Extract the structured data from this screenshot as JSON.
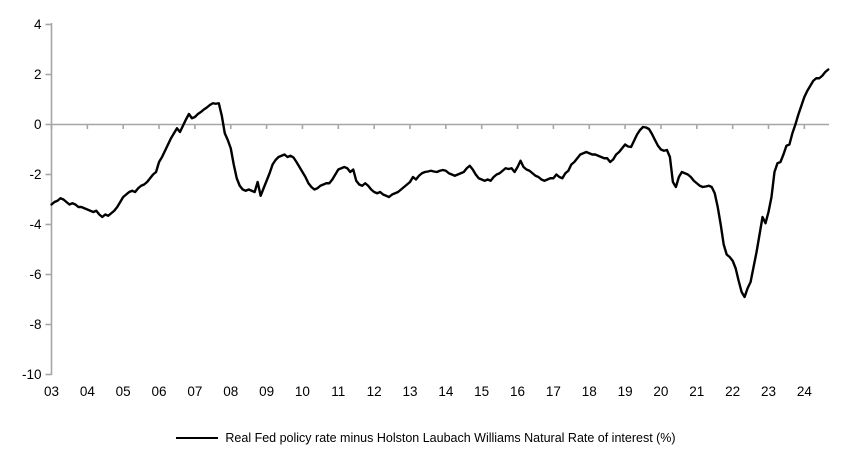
{
  "chart_data": {
    "type": "line",
    "title": "",
    "xlabel": "",
    "ylabel": "",
    "x_start": "2003-01",
    "x_frequency": "monthly",
    "x_tick_labels": [
      "03",
      "04",
      "05",
      "06",
      "07",
      "08",
      "09",
      "10",
      "11",
      "12",
      "13",
      "14",
      "15",
      "16",
      "17",
      "18",
      "19",
      "20",
      "21",
      "22",
      "23",
      "24"
    ],
    "y_ticks": [
      4,
      2,
      0,
      -2,
      -4,
      -6,
      -8,
      -10
    ],
    "ylim": [
      -10,
      4
    ],
    "grid": "zero-line-only",
    "legend_position": "bottom-center",
    "axis_color": "#a6a6a6",
    "text_color": "#000000",
    "series": [
      {
        "name": "Real Fed policy rate minus Holston Laubach Williams Natural Rate of interest (%)",
        "color": "#000000",
        "values": [
          -3.2,
          -3.1,
          -3.05,
          -2.95,
          -3.0,
          -3.1,
          -3.2,
          -3.15,
          -3.2,
          -3.3,
          -3.3,
          -3.35,
          -3.4,
          -3.45,
          -3.5,
          -3.45,
          -3.6,
          -3.7,
          -3.6,
          -3.65,
          -3.55,
          -3.45,
          -3.3,
          -3.1,
          -2.9,
          -2.8,
          -2.7,
          -2.65,
          -2.7,
          -2.55,
          -2.45,
          -2.4,
          -2.3,
          -2.15,
          -2.0,
          -1.9,
          -1.5,
          -1.3,
          -1.05,
          -0.8,
          -0.55,
          -0.35,
          -0.15,
          -0.3,
          -0.05,
          0.2,
          0.42,
          0.25,
          0.3,
          0.42,
          0.5,
          0.6,
          0.68,
          0.78,
          0.85,
          0.83,
          0.85,
          0.35,
          -0.35,
          -0.62,
          -0.95,
          -1.6,
          -2.15,
          -2.45,
          -2.6,
          -2.65,
          -2.6,
          -2.65,
          -2.7,
          -2.3,
          -2.85,
          -2.55,
          -2.25,
          -1.95,
          -1.6,
          -1.42,
          -1.3,
          -1.25,
          -1.2,
          -1.3,
          -1.25,
          -1.32,
          -1.5,
          -1.7,
          -1.9,
          -2.1,
          -2.35,
          -2.5,
          -2.6,
          -2.55,
          -2.45,
          -2.4,
          -2.35,
          -2.35,
          -2.2,
          -2.0,
          -1.8,
          -1.75,
          -1.7,
          -1.75,
          -1.9,
          -1.8,
          -2.25,
          -2.4,
          -2.45,
          -2.35,
          -2.45,
          -2.6,
          -2.7,
          -2.75,
          -2.7,
          -2.8,
          -2.85,
          -2.9,
          -2.8,
          -2.75,
          -2.7,
          -2.6,
          -2.5,
          -2.4,
          -2.3,
          -2.1,
          -2.2,
          -2.05,
          -1.95,
          -1.9,
          -1.88,
          -1.85,
          -1.88,
          -1.9,
          -1.85,
          -1.82,
          -1.85,
          -1.95,
          -2.0,
          -2.05,
          -2.0,
          -1.95,
          -1.9,
          -1.75,
          -1.65,
          -1.8,
          -2.0,
          -2.15,
          -2.2,
          -2.25,
          -2.2,
          -2.25,
          -2.1,
          -2.0,
          -1.95,
          -1.85,
          -1.75,
          -1.78,
          -1.75,
          -1.9,
          -1.7,
          -1.45,
          -1.7,
          -1.8,
          -1.85,
          -1.95,
          -2.05,
          -2.1,
          -2.2,
          -2.25,
          -2.2,
          -2.15,
          -2.15,
          -2.0,
          -2.1,
          -2.15,
          -1.95,
          -1.85,
          -1.6,
          -1.5,
          -1.35,
          -1.2,
          -1.15,
          -1.1,
          -1.15,
          -1.2,
          -1.2,
          -1.25,
          -1.3,
          -1.35,
          -1.35,
          -1.5,
          -1.4,
          -1.2,
          -1.1,
          -0.95,
          -0.8,
          -0.88,
          -0.9,
          -0.65,
          -0.4,
          -0.22,
          -0.1,
          -0.12,
          -0.18,
          -0.38,
          -0.62,
          -0.85,
          -1.0,
          -1.05,
          -1.02,
          -1.3,
          -2.3,
          -2.5,
          -2.1,
          -1.9,
          -1.95,
          -2.0,
          -2.1,
          -2.25,
          -2.35,
          -2.45,
          -2.5,
          -2.48,
          -2.45,
          -2.5,
          -2.75,
          -3.3,
          -4.0,
          -4.8,
          -5.2,
          -5.3,
          -5.45,
          -5.75,
          -6.25,
          -6.7,
          -6.9,
          -6.55,
          -6.3,
          -5.7,
          -5.1,
          -4.4,
          -3.7,
          -3.95,
          -3.5,
          -2.9,
          -1.9,
          -1.55,
          -1.5,
          -1.2,
          -0.85,
          -0.8,
          -0.35,
          0.0,
          0.4,
          0.75,
          1.1,
          1.35,
          1.55,
          1.75,
          1.85,
          1.85,
          1.95,
          2.1,
          2.2
        ]
      }
    ]
  },
  "legend": {
    "label": "Real Fed policy rate minus Holston Laubach Williams Natural Rate of interest (%)"
  }
}
